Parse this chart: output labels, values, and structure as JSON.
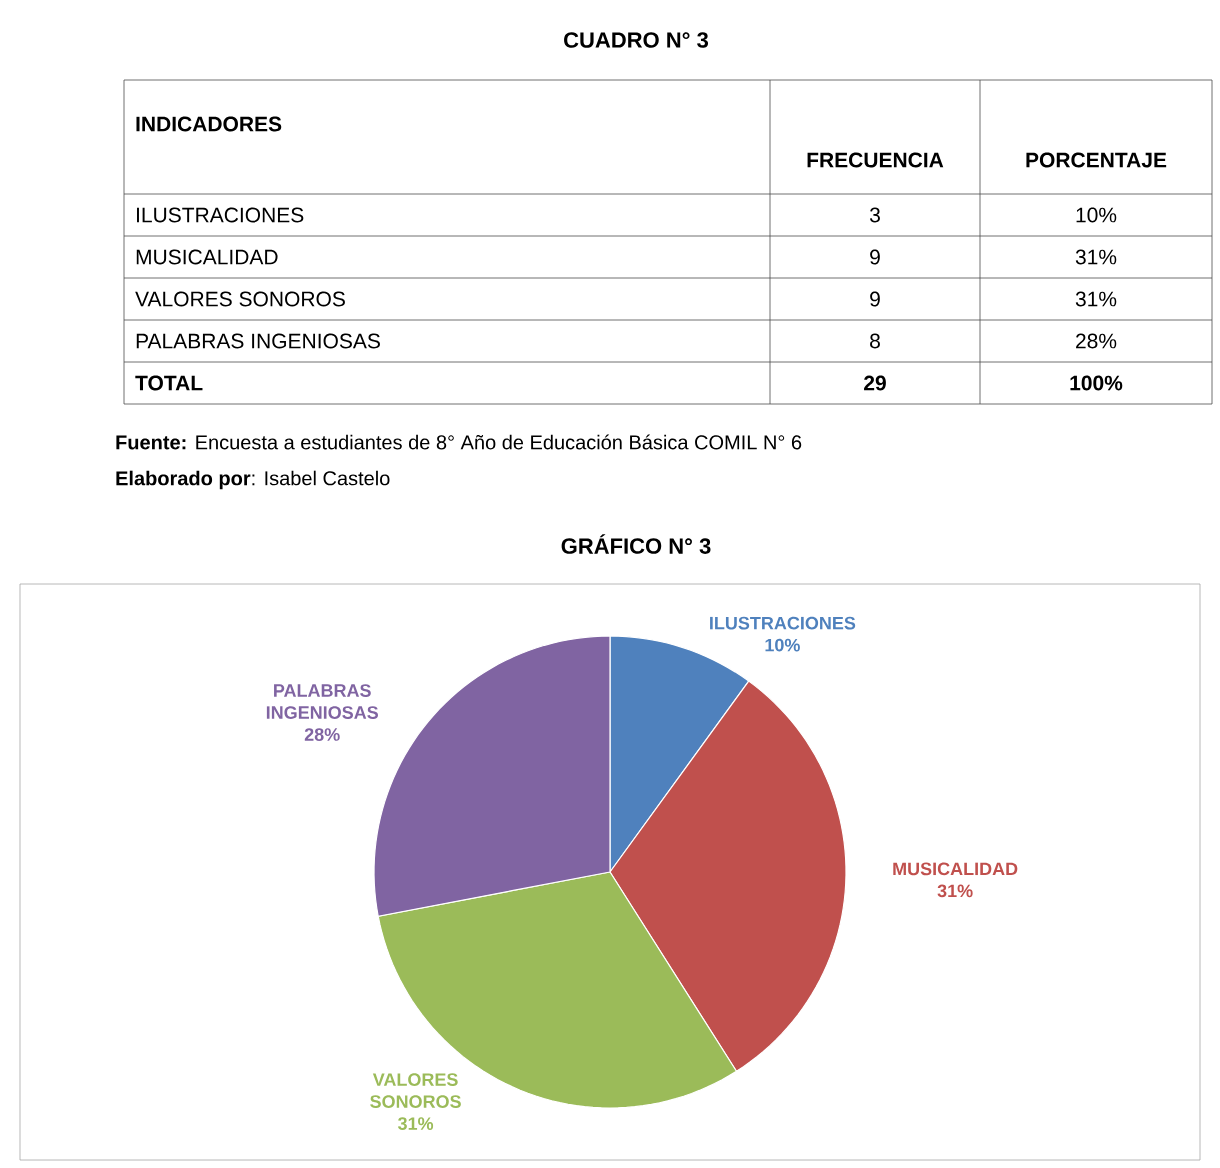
{
  "chart_data": {
    "type": "pie",
    "title": "GRÁFICO N° 3",
    "categories": [
      "ILUSTRACIONES",
      "MUSICALIDAD",
      "VALORES SONOROS",
      "PALABRAS INGENIOSAS"
    ],
    "values": [
      10,
      31,
      31,
      28
    ],
    "value_labels": [
      "10%",
      "31%",
      "31%",
      "28%"
    ],
    "colors": [
      "#4f81bd",
      "#c0504d",
      "#9bbb59",
      "#8064a2"
    ],
    "annotations": [
      "CUADRO N° 3",
      "INDICADORES",
      "FRECUENCIA",
      "PORCENTAJE",
      "TOTAL",
      "29",
      "100%",
      "**Fuente:** Encuesta a estudiantes de 8° Año de Educación Básica COMIL N° 6",
      "**Elaborado por**: Isabel Castelo",
      "3",
      "9",
      "9",
      "8"
    ]
  }
}
